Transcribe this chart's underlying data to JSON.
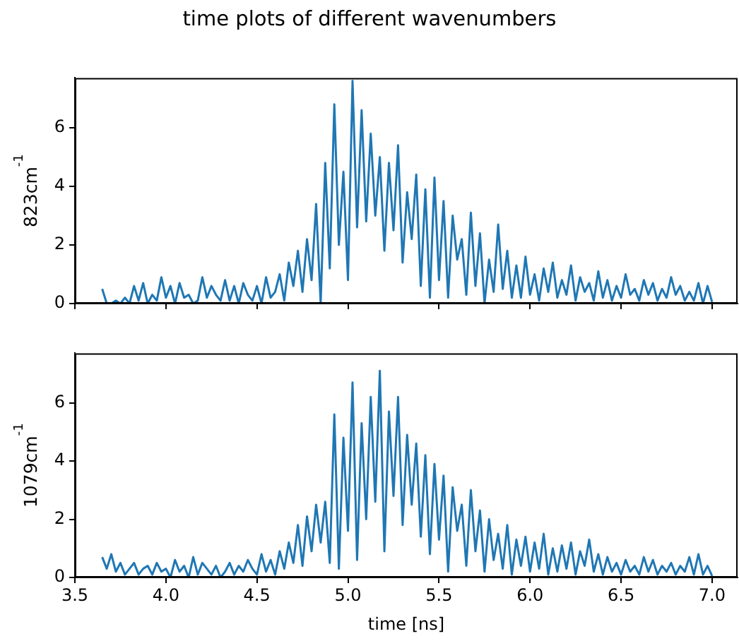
{
  "chart_data": [
    {
      "type": "line",
      "title": "time plots of different wavenumbers",
      "ylabel": "823cm$^{-1}$",
      "tick_labels": "y",
      "grid": false,
      "legend": false,
      "marker": "none",
      "line_style": "solid",
      "xlim": [
        3.5,
        7.14
      ],
      "ylim": [
        0,
        7.7
      ],
      "xticks": [
        3.5,
        4,
        4.5,
        5,
        5.5,
        6,
        6.5,
        7
      ],
      "yticks": [
        0,
        2,
        4,
        6
      ],
      "x": [
        3.65,
        3.675,
        3.7,
        3.725,
        3.75,
        3.775,
        3.8,
        3.825,
        3.85,
        3.875,
        3.9,
        3.925,
        3.95,
        3.975,
        4.0,
        4.025,
        4.05,
        4.075,
        4.1,
        4.125,
        4.15,
        4.175,
        4.2,
        4.225,
        4.25,
        4.275,
        4.3,
        4.325,
        4.35,
        4.375,
        4.4,
        4.425,
        4.45,
        4.475,
        4.5,
        4.525,
        4.55,
        4.575,
        4.6,
        4.625,
        4.65,
        4.675,
        4.7,
        4.725,
        4.75,
        4.775,
        4.8,
        4.825,
        4.85,
        4.875,
        4.9,
        4.925,
        4.95,
        4.975,
        5.0,
        5.025,
        5.05,
        5.075,
        5.1,
        5.125,
        5.15,
        5.175,
        5.2,
        5.225,
        5.25,
        5.275,
        5.3,
        5.325,
        5.35,
        5.375,
        5.4,
        5.425,
        5.45,
        5.475,
        5.5,
        5.525,
        5.55,
        5.575,
        5.6,
        5.625,
        5.65,
        5.675,
        5.7,
        5.725,
        5.75,
        5.775,
        5.8,
        5.825,
        5.85,
        5.875,
        5.9,
        5.925,
        5.95,
        5.975,
        6.0,
        6.025,
        6.05,
        6.075,
        6.1,
        6.125,
        6.15,
        6.175,
        6.2,
        6.225,
        6.25,
        6.275,
        6.3,
        6.325,
        6.35,
        6.375,
        6.4,
        6.425,
        6.45,
        6.475,
        6.5,
        6.525,
        6.55,
        6.575,
        6.6,
        6.625,
        6.65,
        6.675,
        6.7,
        6.725,
        6.75,
        6.775,
        6.8,
        6.825,
        6.85,
        6.875,
        6.9,
        6.925,
        6.95,
        6.975,
        7.0
      ],
      "series": [
        {
          "color": "#1f77b4",
          "values": [
            0.5,
            0,
            0,
            0.1,
            0,
            0.2,
            0,
            0.6,
            0.1,
            0.7,
            0,
            0.3,
            0.1,
            0.9,
            0.2,
            0.6,
            0,
            0.7,
            0.2,
            0.3,
            0,
            0.1,
            0.9,
            0.2,
            0.6,
            0.3,
            0.1,
            0.8,
            0.1,
            0.6,
            0,
            0.7,
            0.3,
            0.1,
            0.6,
            0,
            0.9,
            0.2,
            0.4,
            1.0,
            0.1,
            1.4,
            0.6,
            1.8,
            0.4,
            2.2,
            0.8,
            3.4,
            0,
            4.8,
            1.2,
            6.8,
            2.0,
            4.5,
            0.8,
            7.6,
            2.6,
            6.6,
            2.8,
            5.8,
            3.0,
            5.0,
            1.8,
            4.8,
            2.5,
            5.4,
            1.4,
            3.8,
            2.2,
            4.4,
            0.6,
            3.9,
            0.2,
            4.3,
            0.8,
            3.5,
            0.2,
            3.0,
            1.5,
            2.2,
            0.3,
            3.1,
            0.6,
            2.4,
            0,
            1.5,
            0.4,
            2.7,
            0.5,
            1.8,
            0.2,
            1.3,
            0.2,
            1.6,
            0.3,
            1.0,
            0.1,
            1.2,
            0.4,
            1.4,
            0.2,
            0.8,
            0.3,
            1.3,
            0.1,
            0.9,
            0.4,
            0.7,
            0.1,
            1.1,
            0.2,
            0.8,
            0.1,
            0.6,
            0.2,
            1.0,
            0.3,
            0.5,
            0.1,
            0.8,
            0.3,
            0.7,
            0.1,
            0.5,
            0.2,
            0.9,
            0.3,
            0.6,
            0.1,
            0.4,
            0.1,
            0.7,
            0,
            0.6,
            0.05
          ]
        }
      ]
    },
    {
      "type": "line",
      "xlabel": "time [ns]",
      "ylabel": "1079cm$^{-1}$",
      "grid": false,
      "legend": false,
      "marker": "none",
      "line_style": "solid",
      "xlim": [
        3.5,
        7.14
      ],
      "ylim": [
        0,
        7.7
      ],
      "xticks": [
        3.5,
        {
          "value": 4,
          "label": "4.0"
        },
        4.5,
        {
          "value": 5,
          "label": "5.0"
        },
        5.5,
        {
          "value": 6,
          "label": "6.0"
        },
        6.5,
        {
          "value": 7,
          "label": "7.0"
        }
      ],
      "yticks": [
        0,
        2,
        4,
        6
      ],
      "x": [
        3.65,
        3.675,
        3.7,
        3.725,
        3.75,
        3.775,
        3.8,
        3.825,
        3.85,
        3.875,
        3.9,
        3.925,
        3.95,
        3.975,
        4.0,
        4.025,
        4.05,
        4.075,
        4.1,
        4.125,
        4.15,
        4.175,
        4.2,
        4.225,
        4.25,
        4.275,
        4.3,
        4.325,
        4.35,
        4.375,
        4.4,
        4.425,
        4.45,
        4.475,
        4.5,
        4.525,
        4.55,
        4.575,
        4.6,
        4.625,
        4.65,
        4.675,
        4.7,
        4.725,
        4.75,
        4.775,
        4.8,
        4.825,
        4.85,
        4.875,
        4.9,
        4.925,
        4.95,
        4.975,
        5.0,
        5.025,
        5.05,
        5.075,
        5.1,
        5.125,
        5.15,
        5.175,
        5.2,
        5.225,
        5.25,
        5.275,
        5.3,
        5.325,
        5.35,
        5.375,
        5.4,
        5.425,
        5.45,
        5.475,
        5.5,
        5.525,
        5.55,
        5.575,
        5.6,
        5.625,
        5.65,
        5.675,
        5.7,
        5.725,
        5.75,
        5.775,
        5.8,
        5.825,
        5.85,
        5.875,
        5.9,
        5.925,
        5.95,
        5.975,
        6.0,
        6.025,
        6.05,
        6.075,
        6.1,
        6.125,
        6.15,
        6.175,
        6.2,
        6.225,
        6.25,
        6.275,
        6.3,
        6.325,
        6.35,
        6.375,
        6.4,
        6.425,
        6.45,
        6.475,
        6.5,
        6.525,
        6.55,
        6.575,
        6.6,
        6.625,
        6.65,
        6.675,
        6.7,
        6.725,
        6.75,
        6.775,
        6.8,
        6.825,
        6.85,
        6.875,
        6.9,
        6.925,
        6.95,
        6.975,
        7.0
      ],
      "series": [
        {
          "color": "#1f77b4",
          "values": [
            0.7,
            0.3,
            0.8,
            0.2,
            0.5,
            0.1,
            0.3,
            0.5,
            0.1,
            0.3,
            0.4,
            0.1,
            0.5,
            0.2,
            0.3,
            0,
            0.6,
            0.2,
            0.4,
            0,
            0.7,
            0.1,
            0.5,
            0.3,
            0.1,
            0.4,
            0,
            0.2,
            0.5,
            0.1,
            0.4,
            0.2,
            0.6,
            0.3,
            0.1,
            0.8,
            0.2,
            0.6,
            0.1,
            0.9,
            0.3,
            1.2,
            0.5,
            1.8,
            0.4,
            2.1,
            0.9,
            2.5,
            1.2,
            2.6,
            0.5,
            5.6,
            0.3,
            4.8,
            1.6,
            6.7,
            0.6,
            5.3,
            2.0,
            6.2,
            2.6,
            7.1,
            0.9,
            5.7,
            2.8,
            6.2,
            1.8,
            4.9,
            2.5,
            4.6,
            1.4,
            4.2,
            0.8,
            3.9,
            1.3,
            3.5,
            0.2,
            3.1,
            1.6,
            2.5,
            0.4,
            3.0,
            0.9,
            2.3,
            0.2,
            2.0,
            0.6,
            1.5,
            0.3,
            1.8,
            0.1,
            1.3,
            0.4,
            1.4,
            0.2,
            1.2,
            0.3,
            1.5,
            0.1,
            1.0,
            0.2,
            1.1,
            0.3,
            1.2,
            0.1,
            0.9,
            0.4,
            1.3,
            0.2,
            0.8,
            0.1,
            0.7,
            0.2,
            0.5,
            0.1,
            0.6,
            0.2,
            0.4,
            0.1,
            0.7,
            0.2,
            0.6,
            0.1,
            0.4,
            0.2,
            0.5,
            0.1,
            0.4,
            0.2,
            0.7,
            0.1,
            0.8,
            0.1,
            0.4,
            0.05
          ]
        }
      ]
    }
  ]
}
